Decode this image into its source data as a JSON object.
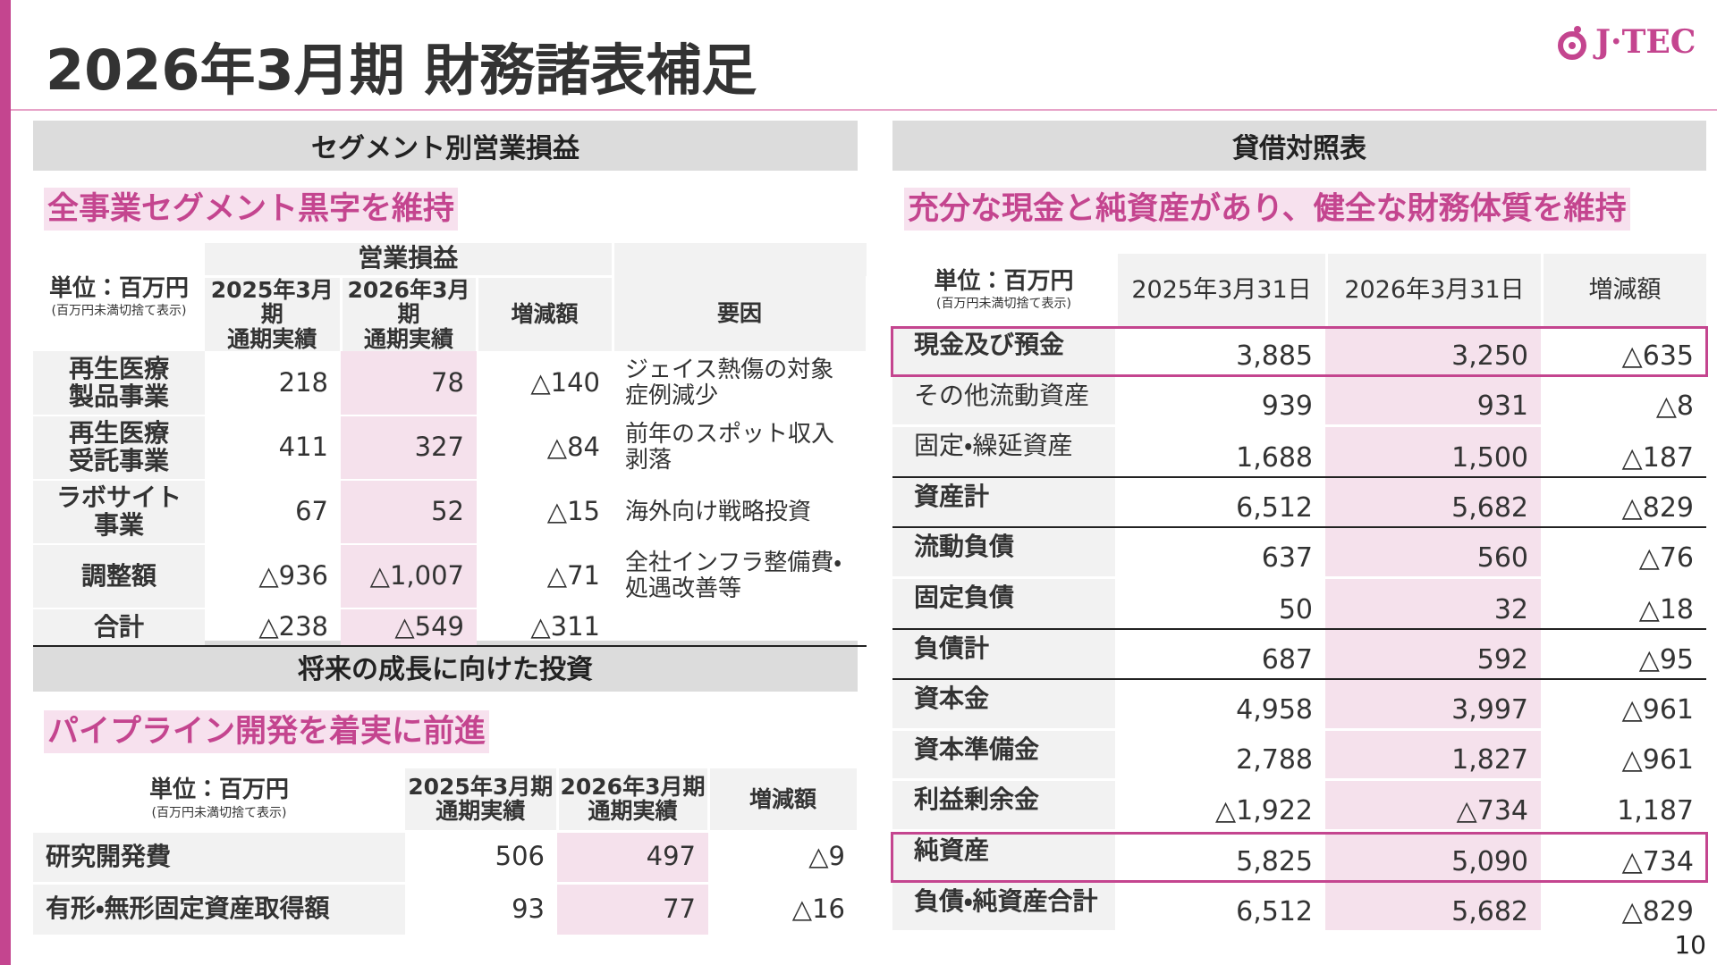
{
  "header": {
    "title": "2026年3月期 財務諸表補足",
    "logo": "J·TEC",
    "page": "10"
  },
  "segment": {
    "heading": "セグメント別営業損益",
    "subtitle": "全事業セグメント黒字を維持",
    "unit": "単位：百万円",
    "unit_note": "(百万円未満切捨て表示)",
    "group": "営業損益",
    "columns": [
      "2025年3月期\n通期実績",
      "2026年3月期\n通期実績",
      "増減額",
      "要因"
    ],
    "rows": [
      {
        "label": "再生医療\n製品事業",
        "values": [
          "218",
          "78",
          "△140"
        ],
        "reason": "ジェイス熱傷の対象\n症例減少"
      },
      {
        "label": "再生医療\n受託事業",
        "values": [
          "411",
          "327",
          "△84"
        ],
        "reason": "前年のスポット収入\n剥落"
      },
      {
        "label": "ラボサイト\n事業",
        "values": [
          "67",
          "52",
          "△15"
        ],
        "reason": "海外向け戦略投資"
      },
      {
        "label": "調整額",
        "values": [
          "△936",
          "△1,007",
          "△71"
        ],
        "reason": "全社インフラ整備費・\n処遇改善等"
      }
    ],
    "total": {
      "label": "合計",
      "values": [
        "△238",
        "△549",
        "△311"
      ]
    }
  },
  "investment": {
    "heading": "将来の成長に向けた投資",
    "subtitle": "パイプライン開発を着実に前進",
    "unit": "単位：百万円",
    "unit_note": "(百万円未満切捨て表示)",
    "columns": [
      "2025年3月期\n通期実績",
      "2026年3月期\n通期実績",
      "増減額"
    ],
    "rows": [
      {
        "label": "研究開発費",
        "values": [
          "506",
          "497",
          "△9"
        ]
      },
      {
        "label": "有形・無形固定資産取得額",
        "values": [
          "93",
          "77",
          "△16"
        ]
      }
    ]
  },
  "balance": {
    "heading": "貸借対照表",
    "subtitle": "充分な現金と純資産があり、健全な財務体質を維持",
    "unit": "単位：百万円",
    "unit_note": "(百万円未満切捨て表示)",
    "columns": [
      "2025年3月31日",
      "2026年3月31日",
      "増減額"
    ],
    "rows": [
      {
        "label": "現金及び預金",
        "values": [
          "3,885",
          "3,250",
          "△635"
        ]
      },
      {
        "label": "その他流動資産",
        "values": [
          "939",
          "931",
          "△8"
        ]
      },
      {
        "label": "固定・繰延資産",
        "values": [
          "1,688",
          "1,500",
          "△187"
        ]
      },
      {
        "label": "資産計",
        "values": [
          "6,512",
          "5,682",
          "△829"
        ]
      },
      {
        "label": "流動負債",
        "values": [
          "637",
          "560",
          "△76"
        ]
      },
      {
        "label": "固定負債",
        "values": [
          "50",
          "32",
          "△18"
        ]
      },
      {
        "label": "負債計",
        "values": [
          "687",
          "592",
          "△95"
        ]
      },
      {
        "label": "資本金",
        "values": [
          "4,958",
          "3,997",
          "△961"
        ]
      },
      {
        "label": "資本準備金",
        "values": [
          "2,788",
          "1,827",
          "△961"
        ]
      },
      {
        "label": "利益剰余金",
        "values": [
          "△1,922",
          "△734",
          "1,187"
        ]
      },
      {
        "label": "純資産",
        "values": [
          "5,825",
          "5,090",
          "△734"
        ]
      },
      {
        "label": "負債・純資産合計",
        "values": [
          "6,512",
          "5,682",
          "△829"
        ]
      }
    ]
  }
}
